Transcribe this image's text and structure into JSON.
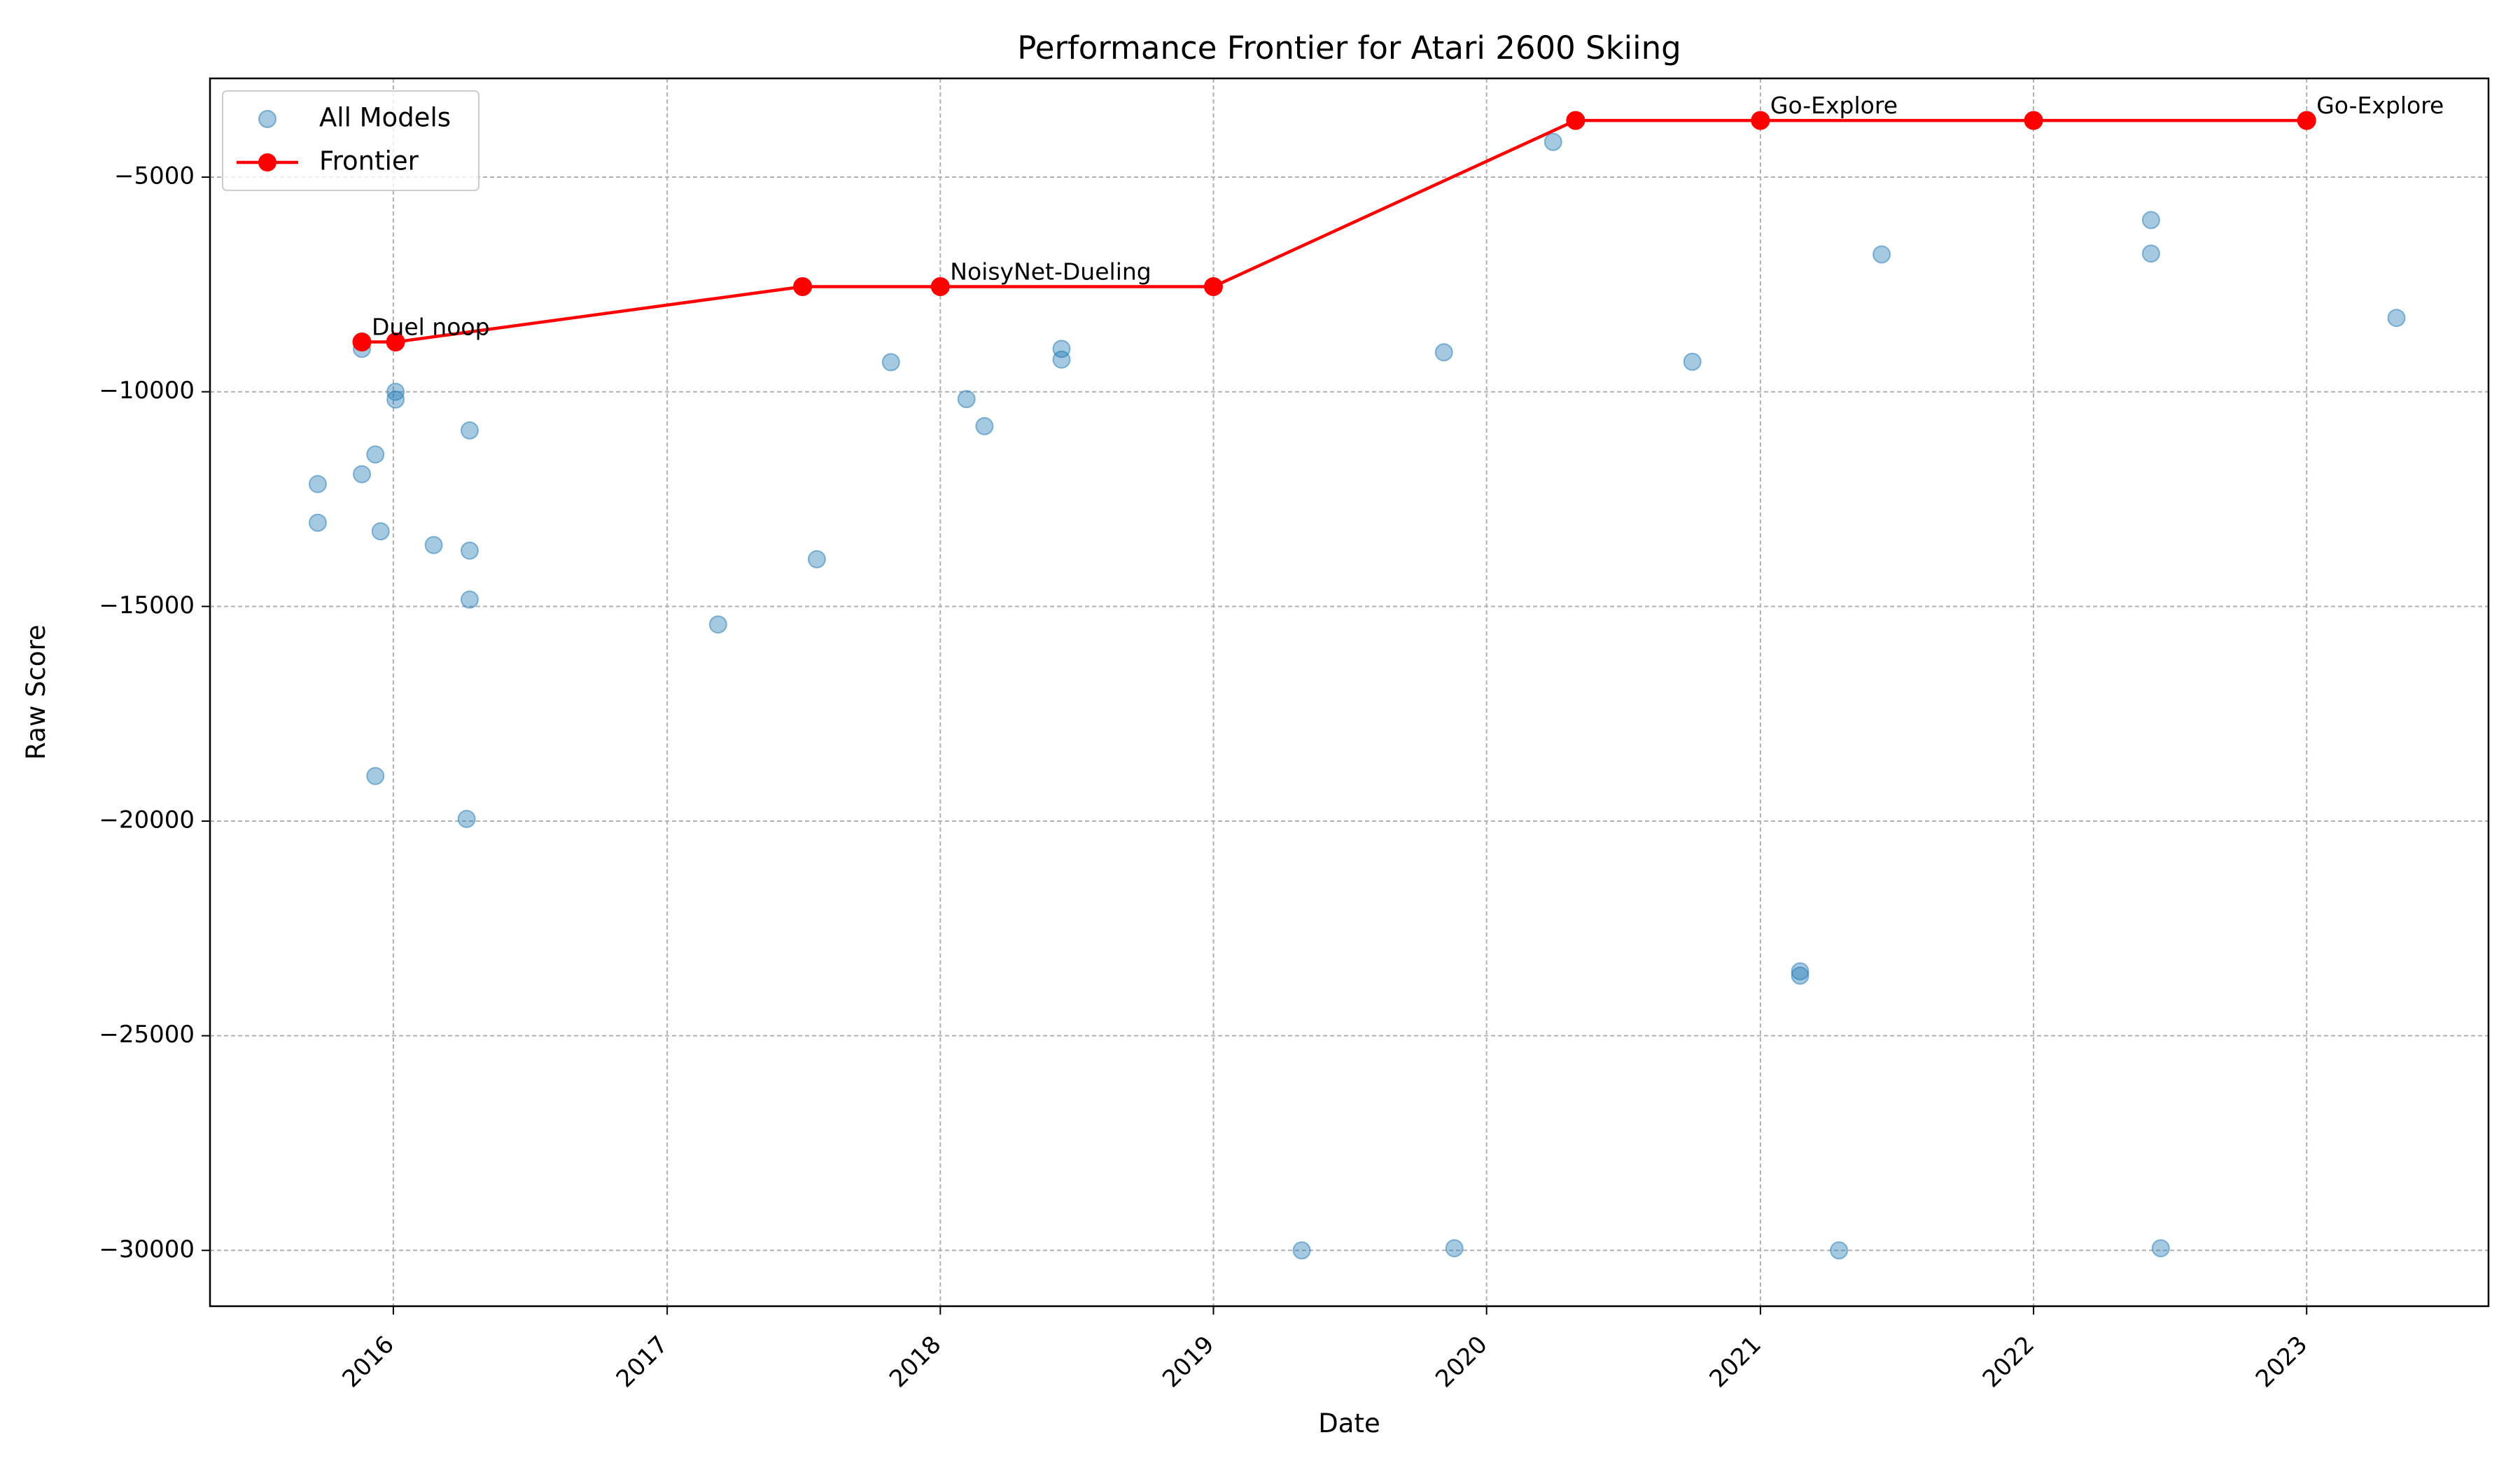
{
  "chart_data": {
    "type": "scatter",
    "title": "Performance Frontier for Atari 2600 Skiing",
    "xlabel": "Date",
    "ylabel": "Raw Score",
    "xlim": [
      "2015-05-01",
      "2023-09-01"
    ],
    "ylim": [
      -31300,
      -2700
    ],
    "x_ticks": [
      "2016",
      "2017",
      "2018",
      "2019",
      "2020",
      "2021",
      "2022",
      "2023"
    ],
    "y_ticks": [
      -5000,
      -10000,
      -15000,
      -20000,
      -25000,
      -30000
    ],
    "grid": true,
    "legend_placement": "top-left",
    "legend": [
      {
        "label": "All Models",
        "marker": "circle",
        "color": "#1f77b4"
      },
      {
        "label": "Frontier",
        "marker": "line-circle",
        "color": "#ff0000"
      }
    ],
    "series": [
      {
        "name": "All Models",
        "kind": "scatter",
        "color": "#1f77b4",
        "points": [
          {
            "x": "2015-09-22",
            "y": -12150
          },
          {
            "x": "2015-09-22",
            "y": -13050
          },
          {
            "x": "2015-11-20",
            "y": -9000
          },
          {
            "x": "2015-11-20",
            "y": -11920
          },
          {
            "x": "2015-12-08",
            "y": -11460
          },
          {
            "x": "2015-12-08",
            "y": -18950
          },
          {
            "x": "2015-12-15",
            "y": -13250
          },
          {
            "x": "2016-01-04",
            "y": -10000
          },
          {
            "x": "2016-01-04",
            "y": -10180
          },
          {
            "x": "2016-02-24",
            "y": -13570
          },
          {
            "x": "2016-04-08",
            "y": -19950
          },
          {
            "x": "2016-04-12",
            "y": -10900
          },
          {
            "x": "2016-04-12",
            "y": -13700
          },
          {
            "x": "2016-04-12",
            "y": -14840
          },
          {
            "x": "2017-03-10",
            "y": -15420
          },
          {
            "x": "2017-07-20",
            "y": -13900
          },
          {
            "x": "2017-10-27",
            "y": -9310
          },
          {
            "x": "2018-02-05",
            "y": -10170
          },
          {
            "x": "2018-03-01",
            "y": -10800
          },
          {
            "x": "2018-06-12",
            "y": -9000
          },
          {
            "x": "2018-06-12",
            "y": -9250
          },
          {
            "x": "2019-04-29",
            "y": -30000
          },
          {
            "x": "2019-11-05",
            "y": -9080
          },
          {
            "x": "2019-11-19",
            "y": -29950
          },
          {
            "x": "2020-03-30",
            "y": -4180
          },
          {
            "x": "2020-10-02",
            "y": -9300
          },
          {
            "x": "2021-02-23",
            "y": -23500
          },
          {
            "x": "2021-02-23",
            "y": -23600
          },
          {
            "x": "2021-04-16",
            "y": -30000
          },
          {
            "x": "2021-06-12",
            "y": -6800
          },
          {
            "x": "2022-06-07",
            "y": -6000
          },
          {
            "x": "2022-06-07",
            "y": -6780
          },
          {
            "x": "2022-06-20",
            "y": -29950
          },
          {
            "x": "2023-05-01",
            "y": -8280
          }
        ]
      },
      {
        "name": "Frontier",
        "kind": "line",
        "color": "#ff0000",
        "points": [
          {
            "x": "2015-11-20",
            "y": -8840
          },
          {
            "x": "2016-01-04",
            "y": -8840
          },
          {
            "x": "2017-07-01",
            "y": -7550
          },
          {
            "x": "2018-01-01",
            "y": -7550
          },
          {
            "x": "2019-01-01",
            "y": -7550
          },
          {
            "x": "2020-04-29",
            "y": -3680
          },
          {
            "x": "2021-01-01",
            "y": -3680
          },
          {
            "x": "2022-01-01",
            "y": -3680
          },
          {
            "x": "2023-01-01",
            "y": -3680
          }
        ]
      }
    ],
    "annotations": [
      {
        "text": "Duel noop",
        "x": "2015-11-20",
        "y": -8840
      },
      {
        "text": "NoisyNet-Dueling",
        "x": "2018-01-01",
        "y": -7550
      },
      {
        "text": "Go-Explore",
        "x": "2021-01-01",
        "y": -3680
      },
      {
        "text": "Go-Explore",
        "x": "2023-01-01",
        "y": -3680
      }
    ]
  }
}
